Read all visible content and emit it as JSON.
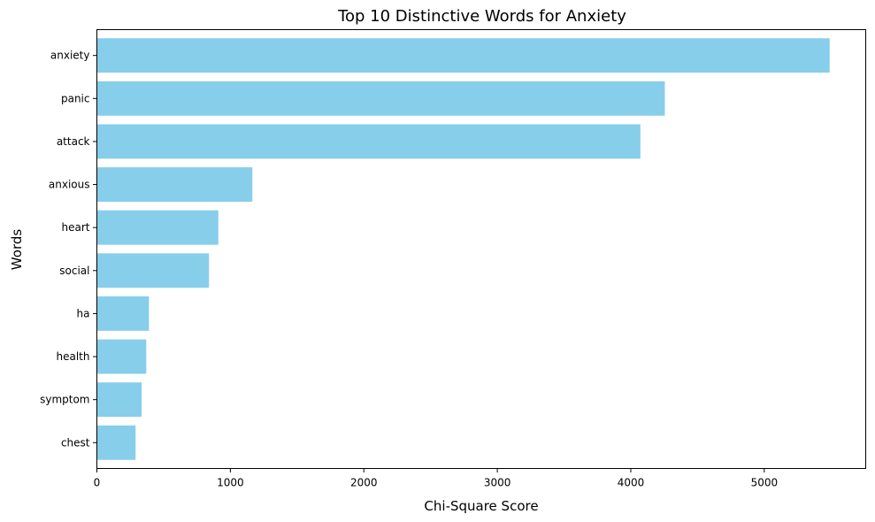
{
  "chart_data": {
    "type": "bar",
    "orientation": "horizontal",
    "title": "Top 10 Distinctive Words for Anxiety",
    "xlabel": "Chi-Square Score",
    "ylabel": "Words",
    "categories": [
      "anxiety",
      "panic",
      "attack",
      "anxious",
      "heart",
      "social",
      "ha",
      "health",
      "symptom",
      "chest"
    ],
    "values": [
      5490,
      4255,
      4072,
      1165,
      910,
      840,
      390,
      370,
      335,
      290
    ],
    "xlim": [
      0,
      5760
    ],
    "xticks": [
      0,
      1000,
      2000,
      3000,
      4000,
      5000
    ],
    "xtick_labels": [
      "0",
      "1000",
      "2000",
      "3000",
      "4000",
      "5000"
    ],
    "grid": false,
    "bar_color": "#87CEEB"
  }
}
